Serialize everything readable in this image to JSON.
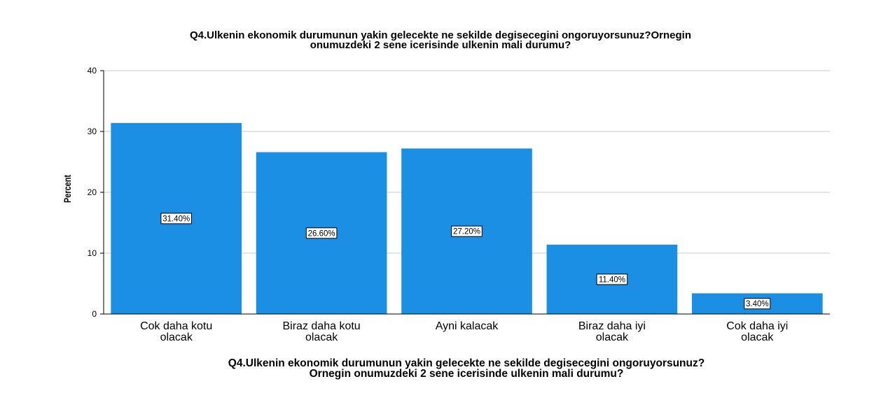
{
  "chart_data": {
    "type": "bar",
    "title_lines": [
      "Q4.Ulkenin ekonomik durumunun yakin gelecekte ne sekilde degisecegini ongoruyorsunuz?Ornegin",
      "onumuzdeki 2 sene icerisinde ulkenin mali durumu?"
    ],
    "xlabel_lines": [
      "Q4.Ulkenin ekonomik durumunun yakin gelecekte ne sekilde degisecegini ongoruyorsunuz?",
      "Ornegin onumuzdeki 2 sene icerisinde ulkenin mali durumu?"
    ],
    "ylabel": "Percent",
    "ylim": [
      0,
      40
    ],
    "yticks": [
      "0",
      "10",
      "20",
      "30",
      "40"
    ],
    "grid": true,
    "categories": [
      [
        "Cok daha kotu",
        "olacak"
      ],
      [
        "Biraz daha kotu",
        "olacak"
      ],
      [
        "Ayni kalacak"
      ],
      [
        "Biraz daha iyi",
        "olacak"
      ],
      [
        "Cok daha iyi",
        "olacak"
      ]
    ],
    "values": [
      31.4,
      26.6,
      27.2,
      11.4,
      3.4
    ],
    "data_labels": [
      "31.40%",
      "26.60%",
      "27.20%",
      "11.40%",
      "3.40%"
    ],
    "bar_color": "#1a8fe3"
  }
}
